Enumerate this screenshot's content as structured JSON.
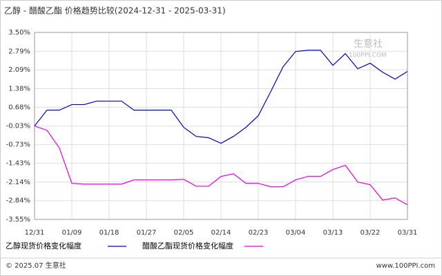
{
  "chart_data": {
    "type": "line",
    "title": "乙醇 - 醋酸乙酯 价格趋势比较(2024-12-31 - 2025-03-31)",
    "categories": [
      "12/31",
      null,
      null,
      "01/09",
      null,
      null,
      "01/18",
      null,
      null,
      "01/27",
      null,
      null,
      "02/05",
      null,
      null,
      "02/14",
      null,
      null,
      "02/23",
      null,
      null,
      "03/04",
      null,
      null,
      "03/13",
      null,
      null,
      "03/22",
      null,
      null,
      "03/31"
    ],
    "series": [
      {
        "name": "乙醇现货价格变化幅度",
        "color": "#0000cc",
        "values": [
          -0.03,
          0.57,
          0.57,
          0.78,
          0.78,
          0.91,
          0.91,
          0.91,
          0.57,
          0.57,
          0.57,
          0.57,
          -0.08,
          -0.42,
          -0.47,
          -0.68,
          -0.42,
          -0.08,
          0.36,
          1.27,
          2.21,
          2.78,
          2.83,
          2.83,
          2.26,
          2.7,
          2.13,
          2.34,
          2.0,
          1.74,
          2.03
        ]
      },
      {
        "name": "醋酸乙酯现货价格变化幅度",
        "color": "#e000e0",
        "values": [
          -0.03,
          -0.19,
          -0.86,
          -2.19,
          -2.22,
          -2.22,
          -2.22,
          -2.22,
          -2.06,
          -2.06,
          -2.06,
          -2.06,
          -2.04,
          -2.3,
          -2.3,
          -1.93,
          -1.83,
          -2.19,
          -2.19,
          -2.32,
          -2.32,
          -2.06,
          -1.93,
          -1.93,
          -1.67,
          -1.51,
          -2.14,
          -2.24,
          -2.82,
          -2.74,
          -3.0
        ]
      }
    ],
    "ylim": [
      -3.55,
      3.5
    ],
    "yticks": [
      {
        "value": 3.5,
        "label": "3.50%"
      },
      {
        "value": 2.79,
        "label": "2.79%"
      },
      {
        "value": 2.09,
        "label": "2.09%"
      },
      {
        "value": 1.38,
        "label": "1.38%"
      },
      {
        "value": 0.68,
        "label": "0.68%"
      },
      {
        "value": -0.03,
        "label": "-0.03%"
      },
      {
        "value": -0.73,
        "label": "-0.73%"
      },
      {
        "value": -1.43,
        "label": "-1.43%"
      },
      {
        "value": -2.14,
        "label": "-2.14%"
      },
      {
        "value": -2.84,
        "label": "-2.84%"
      },
      {
        "value": -3.55,
        "label": "-3.55%"
      }
    ],
    "grid": true
  },
  "watermark": {
    "name": "生意社",
    "site": "100PPI.COM"
  },
  "footer": {
    "left": "© 2025.07 生意社",
    "right": "www.100PPI.com"
  }
}
